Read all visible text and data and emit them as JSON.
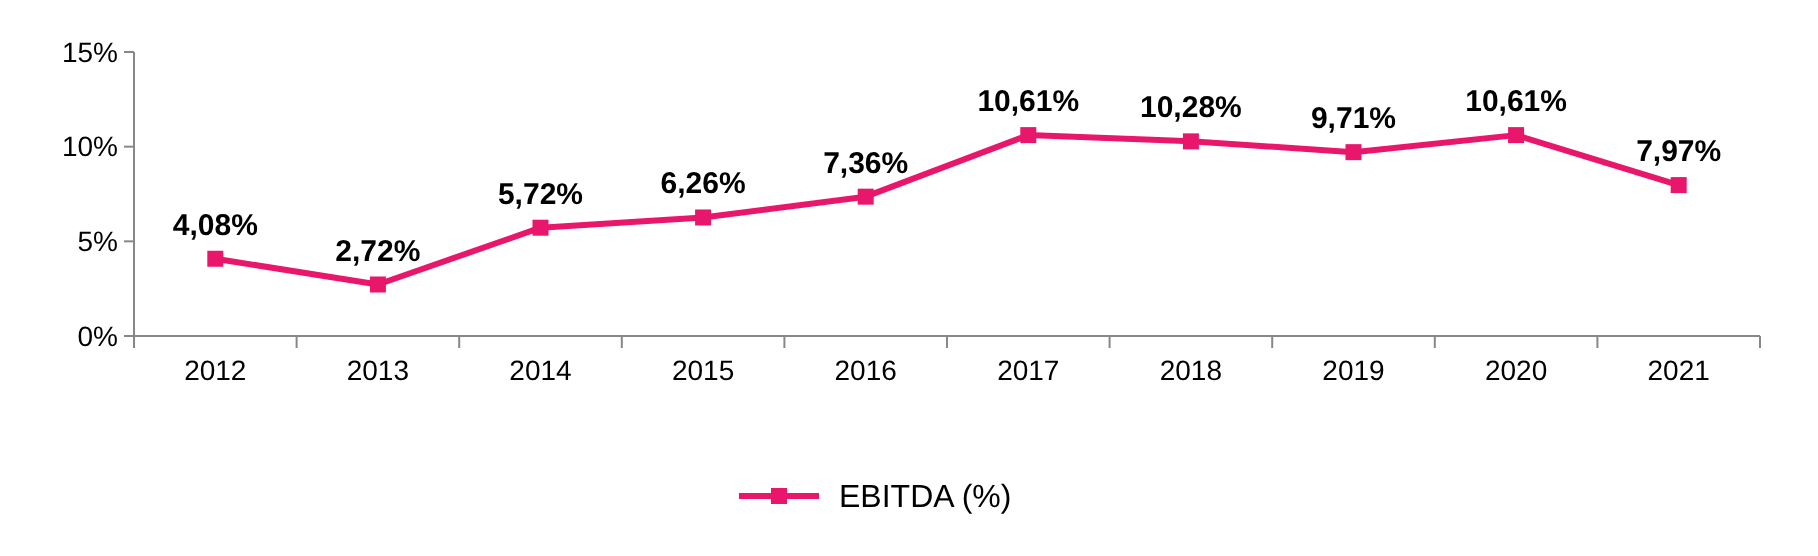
{
  "chart_data": {
    "type": "line",
    "categories": [
      "2012",
      "2013",
      "2014",
      "2015",
      "2016",
      "2017",
      "2018",
      "2019",
      "2020",
      "2021"
    ],
    "series": [
      {
        "name": "EBITDA (%)",
        "color": "#e8176b",
        "values": [
          4.08,
          2.72,
          5.72,
          6.26,
          7.36,
          10.61,
          10.28,
          9.71,
          10.61,
          7.97
        ],
        "value_labels": [
          "4,08%",
          "2,72%",
          "5,72%",
          "6,26%",
          "7,36%",
          "10,61%",
          "10,28%",
          "9,71%",
          "10,61%",
          "7,97%"
        ]
      }
    ],
    "ylim": [
      0,
      15
    ],
    "yticks": [
      {
        "value": 0,
        "label": "0%"
      },
      {
        "value": 5,
        "label": "5%"
      },
      {
        "value": 10,
        "label": "10%"
      },
      {
        "value": 15,
        "label": "15%"
      }
    ],
    "grid": false,
    "legend": "bottom",
    "marker": "square",
    "line_style": "solid"
  }
}
